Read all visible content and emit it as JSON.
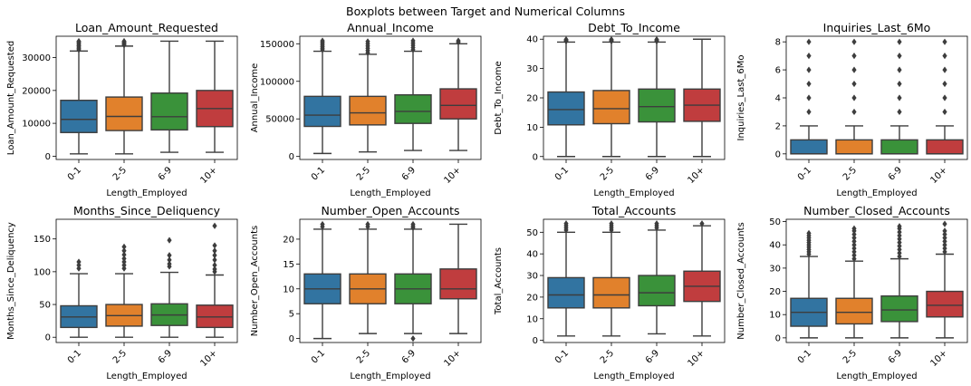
{
  "figure": {
    "suptitle": "Boxplots between Target and Numerical Columns"
  },
  "colors": [
    "#3274a1",
    "#e1812c",
    "#3a923a",
    "#c03d3e"
  ],
  "chart_data": [
    {
      "type": "boxplot",
      "title": "Loan_Amount_Requested",
      "xlabel": "Length_Employed",
      "ylabel": "Loan_Amount_Requested",
      "categories": [
        "0-1",
        "2-5",
        "6-9",
        "10+"
      ],
      "ylim": [
        -1000,
        36500
      ],
      "yticks": [
        0,
        10000,
        20000,
        30000
      ],
      "boxes": [
        {
          "whislo": 700,
          "q1": 7200,
          "med": 11200,
          "q3": 17000,
          "whishi": 32000,
          "outliers": [
            32400,
            32800,
            33200,
            33600,
            34000,
            34400,
            34800,
            35000
          ]
        },
        {
          "whislo": 700,
          "q1": 7800,
          "med": 12100,
          "q3": 18000,
          "whishi": 33500,
          "outliers": [
            33800,
            34100,
            34400,
            34700,
            35000
          ]
        },
        {
          "whislo": 1200,
          "q1": 8000,
          "med": 12000,
          "q3": 19200,
          "whishi": 35000,
          "outliers": []
        },
        {
          "whislo": 1200,
          "q1": 9000,
          "med": 14500,
          "q3": 20000,
          "whishi": 35000,
          "outliers": []
        }
      ]
    },
    {
      "type": "boxplot",
      "title": "Annual_Income",
      "xlabel": "Length_Employed",
      "ylabel": "Annual_Income",
      "categories": [
        "0-1",
        "2-5",
        "6-9",
        "10+"
      ],
      "ylim": [
        -4000,
        160000
      ],
      "yticks": [
        0,
        50000,
        100000,
        150000
      ],
      "boxes": [
        {
          "whislo": 4000,
          "q1": 40000,
          "med": 55000,
          "q3": 80000,
          "whishi": 140000,
          "outliers": [
            142000,
            144000,
            146000,
            148000,
            150000,
            152000,
            154000
          ]
        },
        {
          "whislo": 6000,
          "q1": 42000,
          "med": 58000,
          "q3": 80000,
          "whishi": 136000,
          "outliers": [
            138000,
            141000,
            144000,
            147000,
            150000,
            153000
          ]
        },
        {
          "whislo": 8000,
          "q1": 44000,
          "med": 60000,
          "q3": 82000,
          "whishi": 140000,
          "outliers": [
            142000,
            145000,
            148000,
            151000,
            154000
          ]
        },
        {
          "whislo": 8000,
          "q1": 50000,
          "med": 68000,
          "q3": 90000,
          "whishi": 150000,
          "outliers": [
            152000,
            154000
          ]
        }
      ]
    },
    {
      "type": "boxplot",
      "title": "Debt_To_Income",
      "xlabel": "Length_Employed",
      "ylabel": "Debt_To_Income",
      "categories": [
        "0-1",
        "2-5",
        "6-9",
        "10+"
      ],
      "ylim": [
        -1,
        41
      ],
      "yticks": [
        0,
        10,
        20,
        30,
        40
      ],
      "boxes": [
        {
          "whislo": 0,
          "q1": 10.8,
          "med": 16,
          "q3": 22,
          "whishi": 39,
          "outliers": [
            39.3,
            39.6,
            39.9
          ]
        },
        {
          "whislo": 0,
          "q1": 11.2,
          "med": 16.3,
          "q3": 22.5,
          "whishi": 39,
          "outliers": [
            39.3,
            39.6,
            39.9
          ]
        },
        {
          "whislo": 0,
          "q1": 11.8,
          "med": 17,
          "q3": 23,
          "whishi": 39,
          "outliers": [
            39.3,
            39.6,
            39.9
          ]
        },
        {
          "whislo": 0,
          "q1": 12,
          "med": 17.5,
          "q3": 23,
          "whishi": 40,
          "outliers": []
        }
      ]
    },
    {
      "type": "boxplot",
      "title": "Inquiries_Last_6Mo",
      "xlabel": "Length_Employed",
      "ylabel": "Inquiries_Last_6Mo",
      "categories": [
        "0-1",
        "2-5",
        "6-9",
        "10+"
      ],
      "ylim": [
        -0.4,
        8.4
      ],
      "yticks": [
        0,
        2,
        4,
        6,
        8
      ],
      "boxes": [
        {
          "whislo": 0,
          "q1": 0,
          "med": 0,
          "q3": 1,
          "whishi": 2,
          "outliers": [
            3,
            4,
            5,
            6,
            7,
            8
          ]
        },
        {
          "whislo": 0,
          "q1": 0,
          "med": 0,
          "q3": 1,
          "whishi": 2,
          "outliers": [
            3,
            4,
            5,
            6,
            7,
            8
          ]
        },
        {
          "whislo": 0,
          "q1": 0,
          "med": 0,
          "q3": 1,
          "whishi": 2,
          "outliers": [
            3,
            4,
            5,
            6,
            7,
            8
          ]
        },
        {
          "whislo": 0,
          "q1": 0,
          "med": 0,
          "q3": 1,
          "whishi": 2,
          "outliers": [
            3,
            4,
            5,
            6,
            7,
            8
          ]
        }
      ]
    },
    {
      "type": "boxplot",
      "title": "Months_Since_Deliquency",
      "xlabel": "Length_Employed",
      "ylabel": "Months_Since_Deliquency",
      "categories": [
        "0-1",
        "2-5",
        "6-9",
        "10+"
      ],
      "ylim": [
        -8,
        180
      ],
      "yticks": [
        0,
        50,
        100,
        150
      ],
      "boxes": [
        {
          "whislo": 0,
          "q1": 15,
          "med": 31,
          "q3": 48,
          "whishi": 97,
          "outliers": [
            105,
            110,
            115
          ]
        },
        {
          "whislo": 0,
          "q1": 17,
          "med": 33,
          "q3": 50,
          "whishi": 97,
          "outliers": [
            105,
            110,
            115,
            120,
            126,
            132,
            138
          ]
        },
        {
          "whislo": 0,
          "q1": 18,
          "med": 34,
          "q3": 51,
          "whishi": 99,
          "outliers": [
            108,
            112,
            118,
            125,
            148
          ]
        },
        {
          "whislo": 0,
          "q1": 15,
          "med": 31,
          "q3": 49,
          "whishi": 95,
          "outliers": [
            100,
            104,
            110,
            118,
            125,
            132,
            140,
            170
          ]
        }
      ]
    },
    {
      "type": "boxplot",
      "title": "Number_Open_Accounts",
      "xlabel": "Length_Employed",
      "ylabel": "Number_Open_Accounts",
      "categories": [
        "0-1",
        "2-5",
        "6-9",
        "10+"
      ],
      "ylim": [
        -0.8,
        24
      ],
      "yticks": [
        0,
        5,
        10,
        15,
        20
      ],
      "boxes": [
        {
          "whislo": 0,
          "q1": 7,
          "med": 10,
          "q3": 13,
          "whishi": 22,
          "outliers": [
            22.5,
            23
          ]
        },
        {
          "whislo": 1,
          "q1": 7,
          "med": 10,
          "q3": 13,
          "whishi": 22,
          "outliers": [
            22.5,
            23
          ]
        },
        {
          "whislo": 1,
          "q1": 7,
          "med": 10,
          "q3": 13,
          "whishi": 22,
          "outliers": [
            0,
            22.3,
            22.6,
            23
          ]
        },
        {
          "whislo": 1,
          "q1": 8,
          "med": 10,
          "q3": 14,
          "whishi": 23,
          "outliers": []
        }
      ]
    },
    {
      "type": "boxplot",
      "title": "Total_Accounts",
      "xlabel": "Length_Employed",
      "ylabel": "Total_Accounts",
      "categories": [
        "0-1",
        "2-5",
        "6-9",
        "10+"
      ],
      "ylim": [
        -1,
        56
      ],
      "yticks": [
        0,
        10,
        20,
        30,
        40,
        50
      ],
      "boxes": [
        {
          "whislo": 2,
          "q1": 15,
          "med": 21,
          "q3": 29,
          "whishi": 50,
          "outliers": [
            51,
            52,
            53,
            54
          ]
        },
        {
          "whislo": 2,
          "q1": 15,
          "med": 21,
          "q3": 29,
          "whishi": 50,
          "outliers": [
            51,
            52,
            53,
            54
          ]
        },
        {
          "whislo": 3,
          "q1": 16,
          "med": 22,
          "q3": 30,
          "whishi": 51,
          "outliers": [
            52,
            53,
            54
          ]
        },
        {
          "whislo": 2,
          "q1": 18,
          "med": 25,
          "q3": 32,
          "whishi": 53,
          "outliers": [
            54
          ]
        }
      ]
    },
    {
      "type": "boxplot",
      "title": "Number_Closed_Accounts",
      "xlabel": "Length_Employed",
      "ylabel": "Number_Closed_Accounts",
      "categories": [
        "0-1",
        "2-5",
        "6-9",
        "10+"
      ],
      "ylim": [
        -2,
        51
      ],
      "yticks": [
        0,
        10,
        20,
        30,
        40,
        50
      ],
      "boxes": [
        {
          "whislo": 0,
          "q1": 5,
          "med": 11,
          "q3": 17,
          "whishi": 35,
          "outliers": [
            36,
            37,
            38,
            39,
            40,
            41,
            42,
            43,
            44,
            45
          ]
        },
        {
          "whislo": 0,
          "q1": 6,
          "med": 11,
          "q3": 17,
          "whishi": 33,
          "outliers": [
            34,
            35.5,
            37,
            38.5,
            40,
            41.5,
            43,
            44.5,
            46,
            47
          ]
        },
        {
          "whislo": 0,
          "q1": 7,
          "med": 12,
          "q3": 18,
          "whishi": 34,
          "outliers": [
            35,
            36.5,
            38,
            39.5,
            41,
            42.5,
            44,
            45.5,
            47,
            48
          ]
        },
        {
          "whislo": 0,
          "q1": 9,
          "med": 14,
          "q3": 20,
          "whishi": 36,
          "outliers": [
            37,
            38.5,
            40,
            41.5,
            43,
            44.5,
            46,
            49
          ]
        }
      ]
    }
  ]
}
